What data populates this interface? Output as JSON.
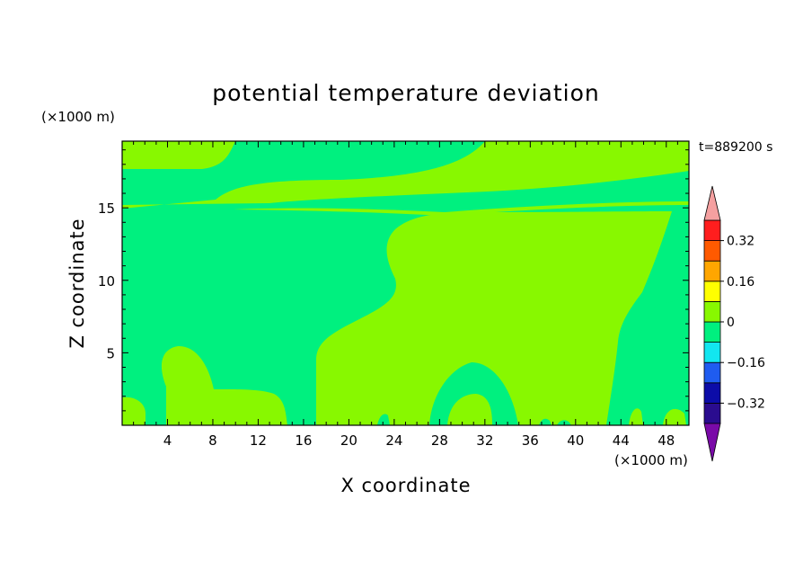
{
  "chart_data": {
    "type": "heatmap",
    "title": "potential temperature deviation",
    "xlabel": "X coordinate",
    "ylabel": "Z coordinate",
    "x_unit": "(×1000 m)",
    "y_unit": "(×1000 m)",
    "time_label": "t=889200 s",
    "xlim": [
      0,
      50
    ],
    "ylim": [
      0,
      19.6
    ],
    "x_ticks": [
      4,
      8,
      12,
      16,
      20,
      24,
      28,
      32,
      36,
      40,
      44,
      48
    ],
    "y_ticks": [
      5,
      10,
      15
    ],
    "colorbar": {
      "levels": [
        -0.4,
        -0.32,
        -0.24,
        -0.16,
        -0.08,
        0,
        0.08,
        0.16,
        0.24,
        0.32,
        0.4
      ],
      "tick_labels": [
        "0.32",
        "0.16",
        "0",
        "−0.16",
        "−0.32"
      ],
      "tick_values": [
        0.32,
        0.16,
        0,
        -0.16,
        -0.32
      ],
      "colors": [
        "#2a0c8f",
        "#0c0ca8",
        "#1f5cf0",
        "#12e6f0",
        "#00f07f",
        "#88f800",
        "#ffff00",
        "#ffa600",
        "#ff5a00",
        "#ff1e1e"
      ],
      "under_color": "#7a0aa8",
      "over_color": "#f5a0a0"
    },
    "dominant_bands": [
      {
        "range": [
          -0.08,
          0
        ],
        "color": "#00f07f"
      },
      {
        "range": [
          0,
          0.08
        ],
        "color": "#88f800"
      }
    ]
  }
}
